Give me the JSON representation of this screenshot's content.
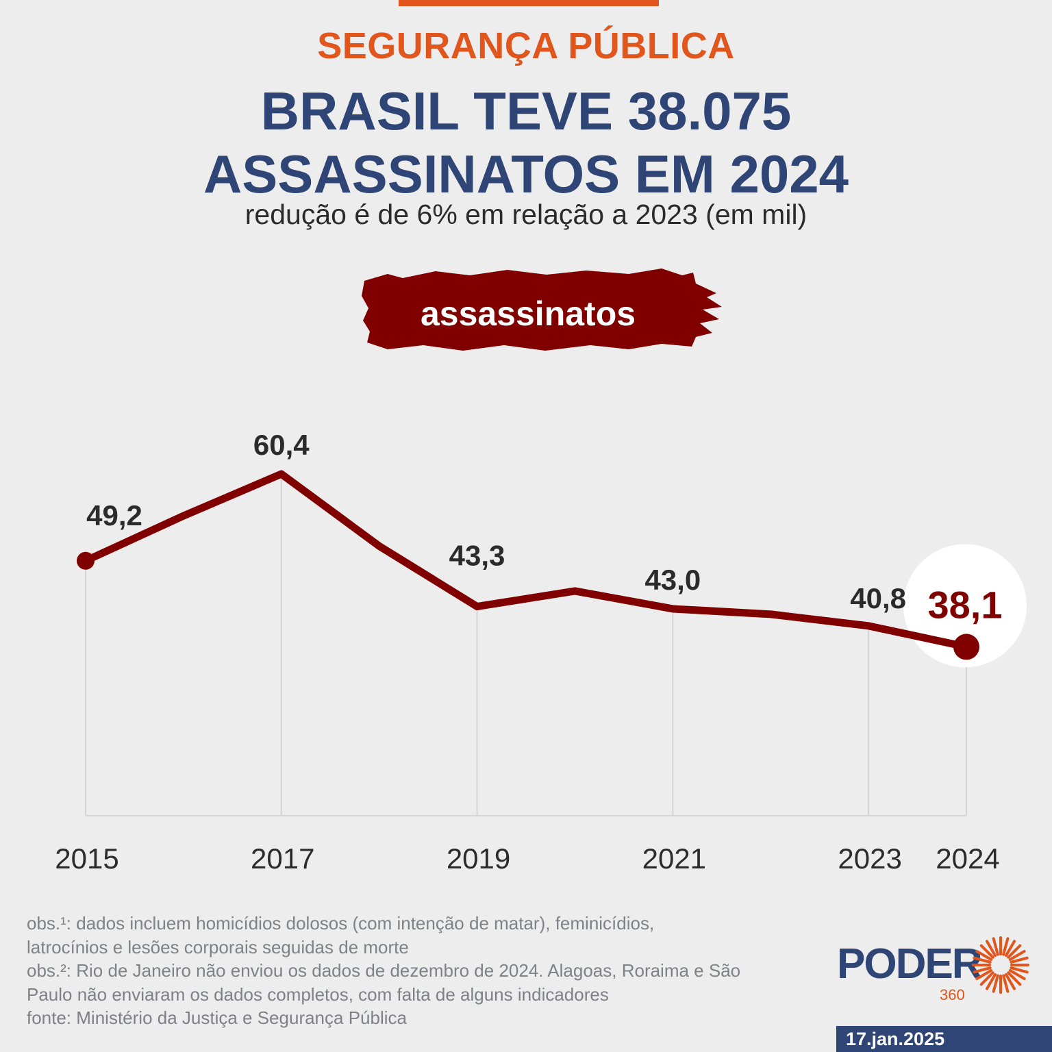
{
  "header": {
    "kicker": "SEGURANÇA PÚBLICA",
    "headline_line1": "BRASIL TEVE 38.075",
    "headline_line2": "ASSASSINATOS EM 2024",
    "subtitle": "redução é de 6% em relação a 2023 (em mil)"
  },
  "colors": {
    "accent_orange": "#e0561d",
    "navy": "#2e4576",
    "series": "#800000",
    "background": "#ededee"
  },
  "chart_data": {
    "type": "line",
    "title": "",
    "xlabel": "",
    "ylabel": "",
    "x": [
      2015,
      2016,
      2017,
      2018,
      2019,
      2020,
      2021,
      2022,
      2023,
      2024
    ],
    "series": [
      {
        "name": "assassinatos",
        "values": [
          49.2,
          55.0,
          60.4,
          51.1,
          43.3,
          45.3,
          43.0,
          42.3,
          40.8,
          38.1
        ]
      }
    ],
    "x_tick_labels": [
      "2015",
      "2017",
      "2019",
      "2021",
      "2023",
      "2024"
    ],
    "data_labels": {
      "2015": "49,2",
      "2017": "60,4",
      "2019": "43,3",
      "2021": "43,0",
      "2023": "40,8",
      "2024": "38,1"
    },
    "highlight": "2024",
    "grid": false,
    "ylim": [
      27,
      65
    ]
  },
  "notes": {
    "obs1_line1": "obs.¹: dados incluem homicídios dolosos (com intenção de matar), feminicídios,",
    "obs1_line2": "latrocínios e lesões corporais seguidas de morte",
    "obs2_line1": "obs.²: Rio de Janeiro não enviou os dados de dezembro de 2024. Alagoas, Roraima e São",
    "obs2_line2": "Paulo não enviaram os dados completos, com falta de alguns indicadores",
    "source": "fonte: Ministério da Justiça e Segurança Pública"
  },
  "brand": {
    "name": "PODER",
    "number": "360",
    "date": "17.jan.2025"
  }
}
